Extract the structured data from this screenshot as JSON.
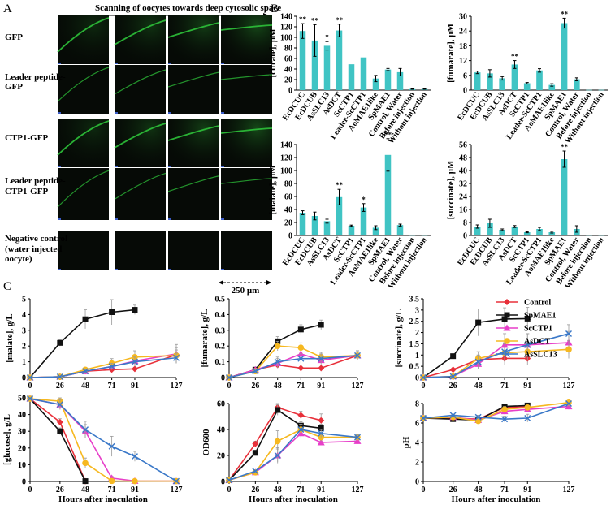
{
  "panels": {
    "A": "A",
    "B": "B",
    "C": "C"
  },
  "panel_a": {
    "scan_title": "Scanning of oocytes towards deep cytosolic space",
    "rows": [
      {
        "label_lines": [
          "GFP"
        ]
      },
      {
        "label_lines": [
          "Leader peptide-",
          "GFP"
        ]
      },
      {
        "label_lines": [
          "CTP1-GFP"
        ]
      },
      {
        "label_lines": [
          "Leader peptide-",
          "CTP1-GFP"
        ]
      },
      {
        "label_lines": [
          "Negative control",
          "(water injected",
          "oocyte)"
        ]
      }
    ],
    "scale_bar": "250 μm",
    "colors": {
      "tile_bg": "#060a06",
      "gfp": "#2ec23a",
      "scale_mark": "#3a5cc8"
    }
  },
  "chart_data": [
    {
      "type": "bar",
      "panel": "B",
      "ylabel": "[citrate], μM",
      "ylim": [
        0,
        140
      ],
      "yticks": [
        0,
        20,
        40,
        60,
        80,
        100,
        120,
        140
      ],
      "categories": [
        "EcDCUC",
        "EcDCUB",
        "AsSLC13",
        "AsDCT",
        "ScCTP1",
        "Leader-ScCTP1",
        "AoMAE1like",
        "SpMAE1",
        "Control, Water",
        "Before injection",
        "Without injection"
      ],
      "values": [
        112,
        94,
        84,
        113,
        49,
        62,
        22,
        39,
        34,
        2,
        2
      ],
      "errors": [
        14,
        30,
        8,
        12,
        0,
        0,
        6,
        2,
        7,
        0.5,
        0.5
      ],
      "significance": [
        "**",
        "**",
        "*",
        "**",
        "",
        "",
        "",
        "",
        "",
        "",
        ""
      ],
      "color": "#40c4c4"
    },
    {
      "type": "bar",
      "panel": "B",
      "ylabel": "[fumarate], μM",
      "ylim": [
        0,
        30
      ],
      "yticks": [
        0,
        6,
        12,
        18,
        24,
        30
      ],
      "categories": [
        "EcDCUC",
        "EcDCUB",
        "AsSLC13",
        "AsDCT",
        "ScCTP1",
        "Leader-ScCTP1",
        "AoMAE1like",
        "SpMAE1",
        "Control, Water",
        "Before injection",
        "Without injection"
      ],
      "values": [
        7.2,
        6.8,
        4.8,
        10.4,
        2.8,
        8.0,
        2.1,
        27.2,
        4.4,
        0.1,
        0.1
      ],
      "errors": [
        0.5,
        1.5,
        0.7,
        1.6,
        0.3,
        0.7,
        0.5,
        2.0,
        0.6,
        0,
        0
      ],
      "significance": [
        "",
        "",
        "",
        "**",
        "",
        "",
        "",
        "**",
        "",
        "",
        ""
      ],
      "color": "#40c4c4"
    },
    {
      "type": "bar",
      "panel": "B",
      "ylabel": "[malate], μM",
      "ylim": [
        0,
        140
      ],
      "yticks": [
        0,
        20,
        40,
        60,
        80,
        100,
        120,
        140
      ],
      "categories": [
        "EcDCUC",
        "EcDCUB",
        "AsSLC13",
        "AsDCT",
        "ScCTP1",
        "Leader-ScCTP1",
        "AoMAE1like",
        "SpMAE1",
        "Control, Water",
        "Before injection",
        "Without injection"
      ],
      "values": [
        35,
        30,
        22,
        59,
        15,
        43,
        12,
        124,
        16,
        0.5,
        0.5
      ],
      "errors": [
        3,
        6,
        3,
        12,
        1,
        6,
        3,
        25,
        1.5,
        0,
        0
      ],
      "significance": [
        "",
        "",
        "",
        "**",
        "",
        "*",
        "",
        "**",
        "",
        "",
        ""
      ],
      "color": "#40c4c4"
    },
    {
      "type": "bar",
      "panel": "B",
      "ylabel": "[succinate], μM",
      "ylim": [
        0,
        56
      ],
      "yticks": [
        0,
        8,
        16,
        24,
        32,
        40,
        48,
        56
      ],
      "categories": [
        "EcDCUC",
        "EcDCUB",
        "AsSLC13",
        "AsDCT",
        "ScCTP1",
        "Leader-ScCTP1",
        "AoMAE1like",
        "SpMAE1",
        "Control, Water",
        "Before injection",
        "Without injection"
      ],
      "values": [
        5.5,
        7.5,
        3.5,
        5.5,
        2.0,
        4.0,
        2.0,
        47.0,
        4.0,
        0.2,
        0.2
      ],
      "errors": [
        1.0,
        2.5,
        0.5,
        0.6,
        0.3,
        1.0,
        0.5,
        5.0,
        2.0,
        0,
        0
      ],
      "significance": [
        "",
        "",
        "",
        "",
        "",
        "",
        "",
        "**",
        "",
        "",
        ""
      ],
      "color": "#40c4c4"
    },
    {
      "type": "line",
      "panel": "C",
      "ylabel": "[malate], g/L",
      "xlabel": "",
      "ylim": [
        0,
        5
      ],
      "yticks": [
        0,
        1,
        2,
        3,
        4,
        5
      ],
      "ytick_labels": [
        "0",
        "1",
        "2",
        "3",
        "4",
        "5"
      ],
      "x": [
        0,
        26,
        48,
        71,
        91,
        127
      ],
      "series": [
        {
          "name": "Control",
          "values": [
            0,
            0.05,
            0.4,
            0.5,
            0.55,
            1.45
          ],
          "errors": [
            0,
            0.02,
            0.1,
            0.1,
            0.1,
            0.3
          ]
        },
        {
          "name": "SpMAE1",
          "values": [
            0,
            2.2,
            3.7,
            4.15,
            4.3,
            null
          ],
          "errors": [
            0,
            0.2,
            0.6,
            0.8,
            0.3,
            0
          ]
        },
        {
          "name": "ScCTP1",
          "values": [
            0,
            0.05,
            0.4,
            0.7,
            1.05,
            1.5
          ],
          "errors": [
            0,
            0.02,
            0.1,
            0.2,
            0.3,
            0.6
          ]
        },
        {
          "name": "AsDCT",
          "values": [
            0,
            0.05,
            0.5,
            0.9,
            1.3,
            1.4
          ],
          "errors": [
            0,
            0.02,
            0.1,
            0.3,
            0.4,
            0.5
          ]
        },
        {
          "name": "AsSLC13",
          "values": [
            0,
            0.05,
            0.4,
            0.7,
            1.0,
            1.25
          ],
          "errors": [
            0,
            0.02,
            0.1,
            0.2,
            0.3,
            0.3
          ]
        }
      ]
    },
    {
      "type": "line",
      "panel": "C",
      "ylabel": "[fumarate], g/L",
      "xlabel": "",
      "ylim": [
        0,
        0.5
      ],
      "yticks": [
        0,
        0.1,
        0.2,
        0.3,
        0.4,
        0.5
      ],
      "ytick_labels": [
        "0",
        "0.1",
        "0.2",
        "0.3",
        "0.4",
        "0.5"
      ],
      "x": [
        0,
        26,
        48,
        71,
        91,
        127
      ],
      "series": [
        {
          "name": "Control",
          "values": [
            0,
            0.05,
            0.08,
            0.06,
            0.06,
            0.14
          ],
          "errors": [
            0,
            0.01,
            0.02,
            0.02,
            0.02,
            0.03
          ]
        },
        {
          "name": "SpMAE1",
          "values": [
            0,
            0.05,
            0.23,
            0.305,
            0.335,
            null
          ],
          "errors": [
            0,
            0.01,
            0.03,
            0.03,
            0.03,
            0
          ]
        },
        {
          "name": "ScCTP1",
          "values": [
            0,
            0.05,
            0.09,
            0.15,
            0.11,
            0.14
          ],
          "errors": [
            0,
            0.01,
            0.03,
            0.03,
            0.03,
            0.03
          ]
        },
        {
          "name": "AsDCT",
          "values": [
            0,
            0.04,
            0.2,
            0.19,
            0.13,
            0.14
          ],
          "errors": [
            0,
            0.01,
            0.03,
            0.03,
            0.03,
            0.03
          ]
        },
        {
          "name": "AsSLC13",
          "values": [
            0,
            0.04,
            0.1,
            0.12,
            0.12,
            0.14
          ],
          "errors": [
            0,
            0.01,
            0.03,
            0.03,
            0.03,
            0.03
          ]
        }
      ]
    },
    {
      "type": "line",
      "panel": "C",
      "ylabel": "[succinate], g/L",
      "xlabel": "",
      "ylim": [
        0,
        3.5
      ],
      "yticks": [
        0,
        0.5,
        1,
        1.5,
        2,
        2.5,
        3,
        3.5
      ],
      "ytick_labels": [
        "0",
        "0.5",
        "1",
        "1.5",
        "2",
        "2.5",
        "3",
        "3.5"
      ],
      "x": [
        0,
        26,
        48,
        71,
        91,
        127
      ],
      "series": [
        {
          "name": "Control",
          "values": [
            0,
            0.35,
            0.8,
            0.85,
            0.85,
            null
          ],
          "errors": [
            0,
            0.05,
            0.2,
            0.3,
            0.3,
            0
          ]
        },
        {
          "name": "SpMAE1",
          "values": [
            0,
            0.95,
            2.45,
            2.6,
            2.62,
            null
          ],
          "errors": [
            0,
            0.05,
            0.6,
            0.5,
            0.5,
            0
          ]
        },
        {
          "name": "ScCTP1",
          "values": [
            0,
            0.05,
            0.6,
            1.45,
            1.45,
            1.55
          ],
          "errors": [
            0,
            0.02,
            0.2,
            0.5,
            0.5,
            0.5
          ]
        },
        {
          "name": "AsDCT",
          "values": [
            0,
            0.05,
            0.85,
            1.1,
            1.15,
            1.25
          ],
          "errors": [
            0,
            0.02,
            0.3,
            0.4,
            0.4,
            0.4
          ]
        },
        {
          "name": "AsSLC13",
          "values": [
            0,
            0.05,
            0.7,
            1.15,
            1.45,
            1.95
          ],
          "errors": [
            0,
            0.02,
            0.3,
            0.4,
            0.5,
            0.4
          ]
        }
      ]
    },
    {
      "type": "line",
      "panel": "C",
      "ylabel": "[glucose], g/L",
      "xlabel": "Hours after inoculation",
      "ylim": [
        0,
        50
      ],
      "yticks": [
        0,
        10,
        20,
        30,
        40,
        50
      ],
      "ytick_labels": [
        "0",
        "10",
        "20",
        "30",
        "40",
        "50"
      ],
      "x": [
        0,
        26,
        48,
        71,
        91,
        127
      ],
      "series": [
        {
          "name": "Control",
          "values": [
            49.5,
            35.5,
            0.2,
            null,
            null,
            null
          ],
          "errors": [
            0.5,
            2,
            0.2,
            0,
            0,
            0
          ]
        },
        {
          "name": "SpMAE1",
          "values": [
            49.5,
            30,
            0.2,
            null,
            null,
            null
          ],
          "errors": [
            0.5,
            2,
            0.2,
            0,
            0,
            0
          ]
        },
        {
          "name": "ScCTP1",
          "values": [
            49.5,
            46,
            30,
            2,
            0.3,
            0.2
          ],
          "errors": [
            0.5,
            3,
            4,
            1,
            0.2,
            0.2
          ]
        },
        {
          "name": "AsDCT",
          "values": [
            49.5,
            48,
            11,
            0.3,
            0.2,
            0.2
          ],
          "errors": [
            0.5,
            2,
            3,
            0.2,
            0.2,
            0.2
          ]
        },
        {
          "name": "AsSLC13",
          "values": [
            49.5,
            46,
            31,
            21,
            15,
            0.2
          ],
          "errors": [
            0.5,
            3,
            5,
            6,
            3,
            0.2
          ]
        }
      ]
    },
    {
      "type": "line",
      "panel": "C",
      "ylabel": "OD600",
      "xlabel": "Hours after inoculation",
      "ylim": [
        0,
        60
      ],
      "yticks": [
        0,
        20,
        40,
        60
      ],
      "ytick_labels": [
        "0",
        "20",
        "40",
        "60"
      ],
      "x": [
        0,
        26,
        48,
        71,
        91,
        127
      ],
      "series": [
        {
          "name": "Control",
          "values": [
            1,
            29,
            57,
            51,
            47,
            null
          ],
          "errors": [
            0,
            2,
            4,
            3,
            5,
            0
          ]
        },
        {
          "name": "SpMAE1",
          "values": [
            1,
            22,
            55,
            43,
            41,
            null
          ],
          "errors": [
            0,
            2,
            4,
            3,
            3,
            0
          ]
        },
        {
          "name": "ScCTP1",
          "values": [
            1,
            7,
            20,
            37,
            30,
            31
          ],
          "errors": [
            0,
            1,
            5,
            4,
            2,
            2
          ]
        },
        {
          "name": "AsDCT",
          "values": [
            1,
            7,
            31,
            40,
            34,
            34
          ],
          "errors": [
            0,
            1,
            8,
            4,
            3,
            2
          ]
        },
        {
          "name": "AsSLC13",
          "values": [
            1,
            8,
            20,
            40,
            37,
            34
          ],
          "errors": [
            0,
            1,
            6,
            4,
            3,
            2
          ]
        }
      ]
    },
    {
      "type": "line",
      "panel": "C",
      "ylabel": "pH",
      "xlabel": "Hours after inoculation",
      "ylim": [
        0,
        8
      ],
      "yticks": [
        0,
        2,
        4,
        6,
        8
      ],
      "ytick_labels": [
        "0",
        "2",
        "4",
        "6",
        "8"
      ],
      "x": [
        0,
        26,
        48,
        71,
        91,
        127
      ],
      "series": [
        {
          "name": "Control",
          "values": [
            6.5,
            6.5,
            6.4,
            7.6,
            7.7,
            null
          ],
          "errors": [
            0.1,
            0.1,
            0.2,
            0.2,
            0.2,
            0
          ]
        },
        {
          "name": "SpMAE1",
          "values": [
            6.5,
            6.4,
            6.3,
            7.7,
            7.8,
            null
          ],
          "errors": [
            0.1,
            0.1,
            0.2,
            0.2,
            0.2,
            0
          ]
        },
        {
          "name": "ScCTP1",
          "values": [
            6.5,
            6.6,
            6.3,
            7.2,
            7.4,
            7.7
          ],
          "errors": [
            0.1,
            0.1,
            0.2,
            0.3,
            0.3,
            0.3
          ]
        },
        {
          "name": "AsDCT",
          "values": [
            6.5,
            6.6,
            6.2,
            7.4,
            7.6,
            8.1
          ],
          "errors": [
            0.1,
            0.1,
            0.2,
            0.3,
            0.2,
            0.2
          ]
        },
        {
          "name": "AsSLC13",
          "values": [
            6.5,
            6.8,
            6.6,
            6.4,
            6.5,
            8.0
          ],
          "errors": [
            0.1,
            0.1,
            0.2,
            0.3,
            0.4,
            0.3
          ]
        }
      ]
    }
  ],
  "legend": {
    "placement": "right",
    "entries": [
      {
        "name": "Control",
        "color": "#e8303a",
        "marker": "diamond"
      },
      {
        "name": "SpMAE1",
        "color": "#111111",
        "marker": "square"
      },
      {
        "name": "ScCTP1",
        "color": "#e73fc9",
        "marker": "triangle"
      },
      {
        "name": "AsDCT",
        "color": "#f6b820",
        "marker": "circle"
      },
      {
        "name": "AsSLC13",
        "color": "#3a78c8",
        "marker": "x"
      }
    ]
  }
}
